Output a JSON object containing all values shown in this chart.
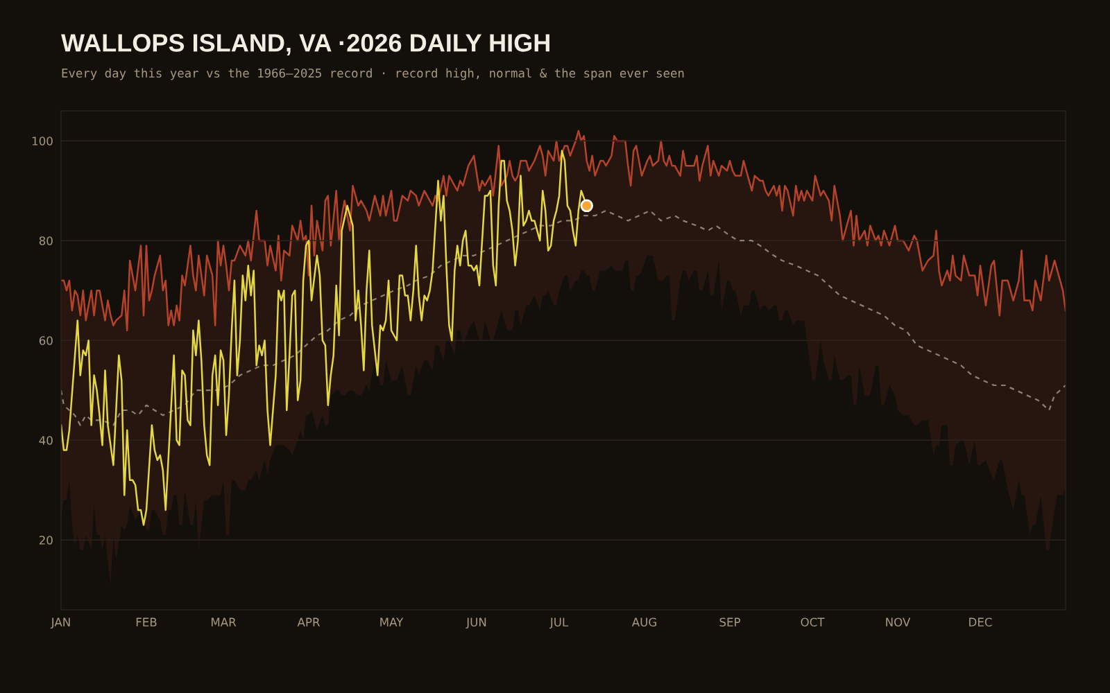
{
  "chart_data": {
    "type": "line",
    "title": "WALLOPS ISLAND, VA ·2026 DAILY HIGH",
    "subtitle": "Every day this year vs the 1966–2025 record · record high, normal & the span ever seen",
    "xlim": [
      "2026-01-01",
      "2027-01-01"
    ],
    "ylim": [
      6,
      106
    ],
    "xticks": [
      {
        "value": "2026-01-01",
        "label": "JAN"
      },
      {
        "value": "2026-02-01",
        "label": "FEB"
      },
      {
        "value": "2026-03-01",
        "label": "MAR"
      },
      {
        "value": "2026-04-01",
        "label": "APR"
      },
      {
        "value": "2026-05-01",
        "label": "MAY"
      },
      {
        "value": "2026-06-01",
        "label": "JUN"
      },
      {
        "value": "2026-07-01",
        "label": "JUL"
      },
      {
        "value": "2026-08-01",
        "label": "AUG"
      },
      {
        "value": "2026-09-01",
        "label": "SEP"
      },
      {
        "value": "2026-10-01",
        "label": "OCT"
      },
      {
        "value": "2026-11-01",
        "label": "NOV"
      },
      {
        "value": "2026-12-01",
        "label": "DEC"
      }
    ],
    "yticks": [
      20,
      40,
      60,
      80,
      100
    ],
    "grid": "y",
    "series": [
      {
        "color": "#b5432a",
        "x": [
          "2026-01-01",
          "2026-01-02",
          "2026-01-03",
          "2026-01-04",
          "2026-01-05",
          "2026-01-06",
          "2026-01-07",
          "2026-01-08",
          "2026-01-09",
          "2026-01-10",
          "2026-01-12",
          "2026-01-13",
          "2026-01-14",
          "2026-01-15",
          "2026-01-16",
          "2026-01-17",
          "2026-01-18",
          "2026-01-19",
          "2026-01-20",
          "2026-01-21",
          "2026-01-23",
          "2026-01-24",
          "2026-01-25",
          "2026-01-26",
          "2026-01-28",
          "2026-01-30",
          "2026-01-31",
          "2026-02-01",
          "2026-02-02",
          "2026-02-03",
          "2026-02-04",
          "2026-02-06",
          "2026-02-07",
          "2026-02-08",
          "2026-02-09",
          "2026-02-10",
          "2026-02-11",
          "2026-02-12",
          "2026-02-13",
          "2026-02-14",
          "2026-02-15",
          "2026-02-17",
          "2026-02-18",
          "2026-02-19",
          "2026-02-20",
          "2026-02-22",
          "2026-02-23",
          "2026-02-25",
          "2026-02-26",
          "2026-02-27",
          "2026-02-28",
          "2026-03-01",
          "2026-03-02",
          "2026-03-03",
          "2026-03-04",
          "2026-03-05",
          "2026-03-07",
          "2026-03-09",
          "2026-03-10",
          "2026-03-11",
          "2026-03-13",
          "2026-03-14",
          "2026-03-16",
          "2026-03-17",
          "2026-03-18",
          "2026-03-20",
          "2026-03-21",
          "2026-03-22",
          "2026-03-23",
          "2026-03-25",
          "2026-03-26",
          "2026-03-28",
          "2026-03-29",
          "2026-03-30",
          "2026-03-31",
          "2026-04-01",
          "2026-04-02",
          "2026-04-03",
          "2026-04-04",
          "2026-04-06",
          "2026-04-07",
          "2026-04-08",
          "2026-04-09",
          "2026-04-11",
          "2026-04-12",
          "2026-04-13",
          "2026-04-14",
          "2026-04-16",
          "2026-04-17",
          "2026-04-19",
          "2026-04-20",
          "2026-04-22",
          "2026-04-23",
          "2026-04-25",
          "2026-04-27",
          "2026-04-28",
          "2026-04-29",
          "2026-05-01",
          "2026-05-02",
          "2026-05-03",
          "2026-05-05",
          "2026-05-07",
          "2026-05-08",
          "2026-05-10",
          "2026-05-11",
          "2026-05-13",
          "2026-05-14",
          "2026-05-16",
          "2026-05-17",
          "2026-05-18",
          "2026-05-20",
          "2026-05-21",
          "2026-05-22",
          "2026-05-24",
          "2026-05-25",
          "2026-05-26",
          "2026-05-27",
          "2026-05-29",
          "2026-05-31",
          "2026-06-02",
          "2026-06-03",
          "2026-06-04",
          "2026-06-06",
          "2026-06-07",
          "2026-06-09",
          "2026-06-10",
          "2026-06-12",
          "2026-06-13",
          "2026-06-14",
          "2026-06-15",
          "2026-06-16",
          "2026-06-17",
          "2026-06-19",
          "2026-06-20",
          "2026-06-22",
          "2026-06-24",
          "2026-06-25",
          "2026-06-26",
          "2026-06-27",
          "2026-06-29",
          "2026-06-30",
          "2026-07-01",
          "2026-07-03",
          "2026-07-04",
          "2026-07-05",
          "2026-07-07",
          "2026-07-08",
          "2026-07-09",
          "2026-07-10",
          "2026-07-11",
          "2026-07-12",
          "2026-07-13",
          "2026-07-14",
          "2026-07-16",
          "2026-07-17",
          "2026-07-18",
          "2026-07-20",
          "2026-07-21",
          "2026-07-22",
          "2026-07-24",
          "2026-07-25",
          "2026-07-26",
          "2026-07-27",
          "2026-07-28",
          "2026-07-29",
          "2026-07-30",
          "2026-07-31",
          "2026-08-02",
          "2026-08-03",
          "2026-08-04",
          "2026-08-06",
          "2026-08-07",
          "2026-08-08",
          "2026-08-09",
          "2026-08-10",
          "2026-08-11",
          "2026-08-12",
          "2026-08-14",
          "2026-08-15",
          "2026-08-16",
          "2026-08-17",
          "2026-08-19",
          "2026-08-20",
          "2026-08-21",
          "2026-08-22",
          "2026-08-24",
          "2026-08-25",
          "2026-08-26",
          "2026-08-28",
          "2026-08-29",
          "2026-08-31",
          "2026-09-01",
          "2026-09-02",
          "2026-09-03",
          "2026-09-05",
          "2026-09-06",
          "2026-09-08",
          "2026-09-09",
          "2026-09-10",
          "2026-09-12",
          "2026-09-13",
          "2026-09-14",
          "2026-09-15",
          "2026-09-17",
          "2026-09-18",
          "2026-09-19",
          "2026-09-20",
          "2026-09-21",
          "2026-09-22",
          "2026-09-24",
          "2026-09-25",
          "2026-09-26",
          "2026-09-27",
          "2026-09-28",
          "2026-09-29",
          "2026-10-01",
          "2026-10-02",
          "2026-10-04",
          "2026-10-05",
          "2026-10-07",
          "2026-10-08",
          "2026-10-09",
          "2026-10-11",
          "2026-10-12",
          "2026-10-14",
          "2026-10-15",
          "2026-10-16",
          "2026-10-17",
          "2026-10-18",
          "2026-10-20",
          "2026-10-21",
          "2026-10-22",
          "2026-10-24",
          "2026-10-25",
          "2026-10-26",
          "2026-10-27",
          "2026-10-29",
          "2026-10-31",
          "2026-11-01",
          "2026-11-03",
          "2026-11-05",
          "2026-11-07",
          "2026-11-08",
          "2026-11-10",
          "2026-11-12",
          "2026-11-14",
          "2026-11-15",
          "2026-11-16",
          "2026-11-17",
          "2026-11-19",
          "2026-11-20",
          "2026-11-21",
          "2026-11-22",
          "2026-11-24",
          "2026-11-25",
          "2026-11-27",
          "2026-11-29",
          "2026-11-30",
          "2026-12-01",
          "2026-12-03",
          "2026-12-05",
          "2026-12-06",
          "2026-12-08",
          "2026-12-09",
          "2026-12-11",
          "2026-12-13",
          "2026-12-15",
          "2026-12-16",
          "2026-12-17",
          "2026-12-19",
          "2026-12-20",
          "2026-12-21",
          "2026-12-23",
          "2026-12-25",
          "2026-12-26",
          "2026-12-28",
          "2026-12-29",
          "2026-12-31",
          "2027-01-01"
        ],
        "values": [
          72,
          72,
          70,
          72,
          66,
          70,
          69,
          65,
          70,
          64,
          70,
          65,
          70,
          70,
          67,
          64,
          68,
          65,
          63,
          64,
          65,
          70,
          62,
          76,
          70,
          79,
          65,
          79,
          68,
          70,
          73,
          77,
          70,
          72,
          63,
          66,
          63,
          67,
          64,
          73,
          71,
          79,
          73,
          70,
          77,
          69,
          77,
          73,
          63,
          80,
          75,
          79,
          75,
          70,
          76,
          76,
          79,
          77,
          80,
          76,
          86,
          80,
          80,
          75,
          79,
          74,
          81,
          72,
          78,
          77,
          83,
          80,
          84,
          80,
          81,
          73,
          87,
          77,
          84,
          78,
          88,
          89,
          79,
          90,
          80,
          85,
          88,
          82,
          91,
          87,
          88,
          86,
          84,
          89,
          85,
          89,
          85,
          90,
          84,
          84,
          89,
          88,
          90,
          89,
          87,
          90,
          89,
          87,
          89,
          88,
          93,
          89,
          93,
          91,
          90,
          92,
          91,
          95,
          97,
          90,
          92,
          91,
          93,
          89,
          99,
          91,
          93,
          96,
          93,
          92,
          93,
          96,
          96,
          94,
          96,
          99,
          97,
          93,
          98,
          96,
          100,
          96,
          99,
          99,
          97,
          100,
          102,
          100,
          101,
          96,
          94,
          97,
          93,
          96,
          96,
          95,
          97,
          101,
          100,
          100,
          100,
          95,
          91,
          98,
          99,
          96,
          93,
          96,
          97,
          95,
          96,
          100,
          96,
          95,
          97,
          95,
          95,
          93,
          98,
          95,
          95,
          95,
          97,
          92,
          95,
          99,
          93,
          96,
          93,
          95,
          94,
          96,
          94,
          93,
          93,
          96,
          92,
          90,
          93,
          92,
          92,
          90,
          89,
          91,
          89,
          91,
          86,
          91,
          90,
          85,
          91,
          88,
          90,
          88,
          90,
          88,
          93,
          89,
          90,
          88,
          84,
          91,
          85,
          80,
          84,
          86,
          79,
          85,
          80,
          82,
          79,
          83,
          80,
          81,
          79,
          82,
          79,
          83,
          80,
          80,
          78,
          81,
          80,
          74,
          76,
          77,
          82,
          74,
          71,
          74,
          72,
          77,
          73,
          72,
          77,
          73,
          73,
          69,
          75,
          67,
          75,
          76,
          65,
          72,
          72,
          68,
          72,
          78,
          68,
          68,
          66,
          72,
          68,
          77,
          72,
          76,
          74,
          70,
          66
        ],
        "upper": [
          72,
          72,
          70,
          72,
          66,
          70,
          69,
          65,
          70,
          64,
          70,
          65,
          70,
          70,
          67,
          64,
          68,
          65,
          63,
          64,
          65,
          70,
          62,
          76,
          70,
          79,
          65,
          79,
          68,
          70,
          73,
          77,
          70,
          72,
          63,
          66,
          63,
          67,
          64,
          73,
          71,
          79,
          73,
          70,
          77,
          69,
          77,
          73,
          63,
          80,
          75,
          79,
          75,
          70,
          76,
          76,
          79,
          77,
          80,
          76,
          86,
          80,
          80,
          75,
          79,
          74,
          81,
          72,
          78,
          77,
          83,
          80,
          84,
          80,
          81,
          73,
          87,
          77,
          84,
          78,
          88,
          89,
          79,
          90,
          80,
          85,
          88,
          82,
          91,
          87,
          88,
          86,
          84,
          89,
          85,
          89,
          85,
          90,
          84,
          84,
          89,
          88,
          90,
          89,
          87,
          90,
          89,
          87,
          89,
          88,
          93,
          89,
          93,
          91,
          90,
          92,
          91,
          95,
          97,
          90,
          92,
          91,
          93,
          89,
          99,
          91,
          93,
          96,
          93,
          92,
          93,
          96,
          96,
          94,
          96,
          99,
          97,
          93,
          98,
          96,
          100,
          96,
          99,
          99,
          97,
          100,
          102,
          100,
          101,
          96,
          94,
          97,
          93,
          96,
          96,
          95,
          97,
          101,
          100,
          100,
          100,
          95,
          91,
          98,
          99,
          96,
          93,
          96,
          97,
          95,
          96,
          100,
          96,
          95,
          97,
          95,
          95,
          93,
          98,
          95,
          95,
          95,
          97,
          92,
          95,
          99,
          93,
          96,
          93,
          95,
          94,
          96,
          94,
          93,
          93,
          96,
          92,
          90,
          93,
          92,
          92,
          90,
          89,
          91,
          89,
          91,
          86,
          91,
          90,
          85,
          91,
          88,
          90,
          88,
          90,
          88,
          93,
          89,
          90,
          88,
          84,
          91,
          85,
          80,
          84,
          86,
          79,
          85,
          80,
          82,
          79,
          83,
          80,
          81,
          79,
          82,
          79,
          83,
          80,
          80,
          78,
          81,
          80,
          74,
          76,
          77,
          82,
          74,
          71,
          74,
          72,
          77,
          73,
          72,
          77,
          73,
          73,
          69,
          75,
          67,
          75,
          76,
          65,
          72,
          72,
          68,
          72,
          78,
          68,
          68,
          66,
          72,
          68,
          77,
          72,
          76,
          74,
          70,
          66
        ],
        "lower": [
          25,
          28,
          28,
          32,
          23,
          19,
          21,
          18,
          18,
          21,
          18,
          27,
          21,
          21,
          18,
          21,
          16,
          11,
          21,
          16,
          23,
          22,
          23,
          27,
          24,
          26,
          26,
          22,
          22,
          26,
          26,
          24,
          21,
          21,
          26,
          26,
          29,
          29,
          23,
          23,
          30,
          23,
          23,
          28,
          18,
          28,
          28,
          29,
          29,
          29,
          29,
          32,
          21,
          21,
          32,
          32,
          30,
          30,
          32,
          32,
          34,
          32,
          36,
          33,
          36,
          39,
          39,
          39,
          39,
          38,
          37,
          40,
          42,
          40,
          45,
          45,
          46,
          44,
          42,
          45,
          43,
          43,
          49,
          50,
          50,
          49,
          49,
          50,
          50,
          49,
          49,
          51,
          50,
          56,
          51,
          51,
          56,
          52,
          52,
          52,
          55,
          49,
          49,
          55,
          53,
          56,
          56,
          54,
          59,
          59,
          56,
          60,
          60,
          57,
          62,
          62,
          59,
          62,
          64,
          60,
          60,
          64,
          60,
          60,
          64,
          66,
          62,
          62,
          62,
          66,
          66,
          63,
          67,
          67,
          69,
          66,
          69,
          69,
          70,
          67,
          67,
          70,
          73,
          73,
          70,
          72,
          72,
          74,
          74,
          73,
          73,
          70,
          70,
          74,
          74,
          74,
          75,
          74,
          74,
          74,
          76,
          76,
          70,
          70,
          73,
          73,
          74,
          77,
          77,
          77,
          72,
          72,
          72,
          73,
          73,
          64,
          64,
          72,
          74,
          74,
          72,
          74,
          74,
          70,
          70,
          74,
          69,
          69,
          76,
          66,
          72,
          72,
          70,
          70,
          65,
          67,
          67,
          70,
          70,
          66,
          67,
          67,
          66,
          67,
          67,
          64,
          64,
          66,
          66,
          63,
          64,
          64,
          64,
          64,
          60,
          52,
          52,
          60,
          56,
          52,
          52,
          57,
          52,
          52,
          53,
          53,
          47,
          47,
          55,
          49,
          49,
          49,
          55,
          55,
          47,
          47,
          51,
          49,
          46,
          45,
          45,
          43,
          43,
          44,
          44,
          37,
          39,
          39,
          43,
          43,
          35,
          35,
          39,
          40,
          40,
          35,
          40,
          35,
          35,
          36,
          33,
          32,
          36,
          36,
          30,
          26,
          32,
          29,
          29,
          21,
          23,
          23,
          29,
          18,
          18,
          26,
          29,
          29,
          30
        ]
      },
      {
        "color": "#8a8272",
        "line_style": "dashed",
        "x": [
          "2026-01-01",
          "2026-01-02",
          "2026-01-04",
          "2026-01-06",
          "2026-01-08",
          "2026-01-10",
          "2026-01-12",
          "2026-01-16",
          "2026-01-20",
          "2026-01-23",
          "2026-01-26",
          "2026-01-29",
          "2026-02-01",
          "2026-02-04",
          "2026-02-07",
          "2026-02-11",
          "2026-02-15",
          "2026-02-19",
          "2026-02-23",
          "2026-02-27",
          "2026-03-03",
          "2026-03-07",
          "2026-03-11",
          "2026-03-15",
          "2026-03-19",
          "2026-03-23",
          "2026-03-27",
          "2026-03-31",
          "2026-04-04",
          "2026-04-08",
          "2026-04-12",
          "2026-04-16",
          "2026-04-20",
          "2026-04-24",
          "2026-04-28",
          "2026-05-02",
          "2026-05-07",
          "2026-05-10",
          "2026-05-15",
          "2026-05-19",
          "2026-05-23",
          "2026-05-27",
          "2026-05-31",
          "2026-06-04",
          "2026-06-08",
          "2026-06-12",
          "2026-06-16",
          "2026-06-20",
          "2026-06-24",
          "2026-06-28",
          "2026-07-02",
          "2026-07-06",
          "2026-07-10",
          "2026-07-14",
          "2026-07-18",
          "2026-07-22",
          "2026-07-26",
          "2026-07-30",
          "2026-08-03",
          "2026-08-07",
          "2026-08-12",
          "2026-08-15",
          "2026-08-20",
          "2026-08-24",
          "2026-08-27",
          "2026-09-01",
          "2026-09-04",
          "2026-09-09",
          "2026-09-12",
          "2026-09-17",
          "2026-09-20",
          "2026-09-25",
          "2026-09-29",
          "2026-10-03",
          "2026-10-07",
          "2026-10-11",
          "2026-10-15",
          "2026-10-19",
          "2026-10-23",
          "2026-10-27",
          "2026-10-31",
          "2026-11-04",
          "2026-11-08",
          "2026-11-12",
          "2026-11-16",
          "2026-11-20",
          "2026-11-24",
          "2026-11-28",
          "2026-12-02",
          "2026-12-06",
          "2026-12-10",
          "2026-12-14",
          "2026-12-18",
          "2026-12-22",
          "2026-12-26",
          "2026-12-28",
          "2026-12-30",
          "2027-01-01"
        ],
        "values": [
          50,
          47,
          46,
          45,
          43,
          45,
          44,
          44,
          43,
          46,
          46,
          45,
          47,
          46,
          45,
          46,
          47,
          50,
          50,
          50,
          51,
          53,
          54,
          55,
          55,
          56,
          57,
          59,
          61,
          62,
          64,
          65,
          67,
          68,
          69,
          70,
          71,
          72,
          73,
          75,
          76,
          77,
          77,
          78,
          79,
          80,
          81,
          82,
          83,
          83,
          84,
          84,
          85,
          85,
          86,
          85,
          84,
          85,
          86,
          84,
          85,
          84,
          83,
          82,
          83,
          81,
          80,
          80,
          79,
          77,
          76,
          75,
          74,
          73,
          71,
          69,
          68,
          67,
          66,
          65,
          63,
          62,
          59,
          58,
          57,
          56,
          55,
          53,
          52,
          51,
          51,
          50,
          49,
          48,
          46,
          49,
          50,
          51
        ]
      },
      {
        "color": "#e3d742",
        "x": [
          "2026-01-01",
          "2026-01-02",
          "2026-01-03",
          "2026-01-04",
          "2026-01-07",
          "2026-01-08",
          "2026-01-09",
          "2026-01-10",
          "2026-01-11",
          "2026-01-12",
          "2026-01-13",
          "2026-01-14",
          "2026-01-15",
          "2026-01-16",
          "2026-01-17",
          "2026-01-18",
          "2026-01-20",
          "2026-01-22",
          "2026-01-23",
          "2026-01-24",
          "2026-01-25",
          "2026-01-26",
          "2026-01-27",
          "2026-01-28",
          "2026-01-29",
          "2026-01-30",
          "2026-01-31",
          "2026-02-01",
          "2026-02-03",
          "2026-02-04",
          "2026-02-05",
          "2026-02-06",
          "2026-02-07",
          "2026-02-08",
          "2026-02-11",
          "2026-02-12",
          "2026-02-13",
          "2026-02-14",
          "2026-02-15",
          "2026-02-16",
          "2026-02-17",
          "2026-02-18",
          "2026-02-19",
          "2026-02-20",
          "2026-02-21",
          "2026-02-22",
          "2026-02-23",
          "2026-02-24",
          "2026-02-25",
          "2026-02-26",
          "2026-02-27",
          "2026-02-28",
          "2026-03-01",
          "2026-03-02",
          "2026-03-03",
          "2026-03-04",
          "2026-03-05",
          "2026-03-06",
          "2026-03-07",
          "2026-03-08",
          "2026-03-09",
          "2026-03-10",
          "2026-03-11",
          "2026-03-12",
          "2026-03-13",
          "2026-03-14",
          "2026-03-15",
          "2026-03-16",
          "2026-03-17",
          "2026-03-18",
          "2026-03-20",
          "2026-03-21",
          "2026-03-22",
          "2026-03-23",
          "2026-03-24",
          "2026-03-25",
          "2026-03-26",
          "2026-03-27",
          "2026-03-28",
          "2026-03-29",
          "2026-03-30",
          "2026-03-31",
          "2026-04-01",
          "2026-04-02",
          "2026-04-04",
          "2026-04-05",
          "2026-04-06",
          "2026-04-07",
          "2026-04-08",
          "2026-04-09",
          "2026-04-10",
          "2026-04-11",
          "2026-04-12",
          "2026-04-13",
          "2026-04-15",
          "2026-04-17",
          "2026-04-18",
          "2026-04-19",
          "2026-04-20",
          "2026-04-21",
          "2026-04-22",
          "2026-04-23",
          "2026-04-24",
          "2026-04-25",
          "2026-04-26",
          "2026-04-27",
          "2026-04-28",
          "2026-04-29",
          "2026-04-30",
          "2026-05-01",
          "2026-05-02",
          "2026-05-03",
          "2026-05-04",
          "2026-05-05",
          "2026-05-06",
          "2026-05-07",
          "2026-05-08",
          "2026-05-09",
          "2026-05-10",
          "2026-05-11",
          "2026-05-12",
          "2026-05-13",
          "2026-05-14",
          "2026-05-15",
          "2026-05-16",
          "2026-05-18",
          "2026-05-19",
          "2026-05-20",
          "2026-05-21",
          "2026-05-22",
          "2026-05-23",
          "2026-05-24",
          "2026-05-25",
          "2026-05-26",
          "2026-05-27",
          "2026-05-28",
          "2026-05-29",
          "2026-05-30",
          "2026-05-31",
          "2026-06-01",
          "2026-06-02",
          "2026-06-03",
          "2026-06-04",
          "2026-06-05",
          "2026-06-06",
          "2026-06-07",
          "2026-06-08",
          "2026-06-09",
          "2026-06-10",
          "2026-06-11",
          "2026-06-12",
          "2026-06-13",
          "2026-06-14",
          "2026-06-15",
          "2026-06-16",
          "2026-06-17",
          "2026-06-18",
          "2026-06-19",
          "2026-06-20",
          "2026-06-21",
          "2026-06-22",
          "2026-06-23",
          "2026-06-24",
          "2026-06-25",
          "2026-06-26",
          "2026-06-27",
          "2026-06-28",
          "2026-06-29",
          "2026-06-30",
          "2026-07-01",
          "2026-07-02",
          "2026-07-03",
          "2026-07-04",
          "2026-07-05",
          "2026-07-06",
          "2026-07-07",
          "2026-07-08",
          "2026-07-09",
          "2026-07-11"
        ],
        "values": [
          43,
          38,
          38,
          42,
          64,
          53,
          58,
          57,
          60,
          43,
          53,
          50,
          45,
          39,
          54,
          43,
          35,
          57,
          52,
          29,
          42,
          32,
          32,
          31,
          26,
          26,
          23,
          26,
          43,
          38,
          36,
          37,
          34,
          26,
          57,
          40,
          39,
          54,
          53,
          44,
          43,
          62,
          57,
          64,
          56,
          43,
          37,
          35,
          53,
          57,
          47,
          58,
          56,
          41,
          49,
          62,
          72,
          53,
          60,
          73,
          68,
          75,
          69,
          74,
          55,
          59,
          57,
          60,
          46,
          39,
          53,
          70,
          68,
          70,
          46,
          57,
          69,
          70,
          48,
          52,
          72,
          79,
          80,
          68,
          77,
          73,
          60,
          59,
          47,
          53,
          57,
          71,
          61,
          82,
          87,
          83,
          64,
          70,
          63,
          54,
          70,
          78,
          63,
          58,
          53,
          63,
          62,
          64,
          72,
          62,
          61,
          60,
          73,
          73,
          69,
          69,
          64,
          70,
          79,
          69,
          64,
          69,
          68,
          70,
          74,
          92,
          84,
          89,
          75,
          63,
          60,
          74,
          79,
          75,
          80,
          82,
          75,
          75,
          74,
          75,
          71,
          80,
          89,
          89,
          90,
          75,
          71,
          87,
          96,
          96,
          88,
          86,
          82,
          75,
          80,
          93,
          83,
          84,
          86,
          84,
          84,
          82,
          80,
          90,
          86,
          78,
          79,
          84,
          86,
          89,
          98,
          96,
          87,
          86,
          82,
          79,
          86,
          90,
          87
        ]
      },
      {
        "type": "scatter",
        "marker": "circle",
        "color": "#f5a635",
        "x": [
          "2026-07-11"
        ],
        "values": [
          87
        ]
      }
    ]
  }
}
